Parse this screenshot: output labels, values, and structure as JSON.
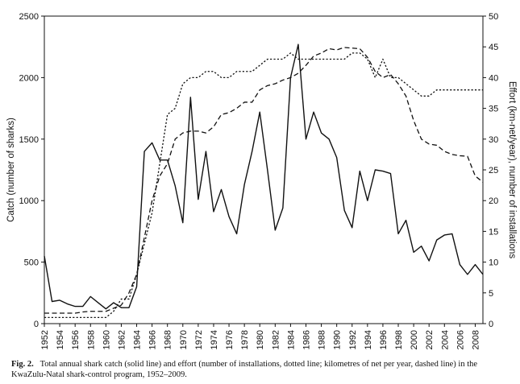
{
  "caption": {
    "label": "Fig. 2.",
    "text": "Total annual shark catch (solid line) and effort (number of installations, dotted line; kilometres of net per year, dashed line) in the KwaZulu-Natal shark-control program, 1952–2009."
  },
  "chart_data": {
    "type": "line",
    "title": "",
    "xlabel": "",
    "ylabel": "Catch (number of sharks)",
    "y2label": "Effort (km-net/year), number of installations",
    "xlim": [
      1952,
      2009
    ],
    "ylim": [
      0,
      2500
    ],
    "y2lim": [
      0,
      50
    ],
    "xticks": [
      1952,
      1954,
      1956,
      1958,
      1960,
      1962,
      1964,
      1966,
      1968,
      1970,
      1972,
      1974,
      1976,
      1978,
      1980,
      1982,
      1984,
      1986,
      1988,
      1990,
      1992,
      1994,
      1996,
      1998,
      2000,
      2002,
      2004,
      2006,
      2008
    ],
    "yticks": [
      0,
      500,
      1000,
      1500,
      2000,
      2500
    ],
    "y2ticks": [
      0,
      5,
      10,
      15,
      20,
      25,
      30,
      35,
      40,
      45,
      50
    ],
    "grid": false,
    "legend": "none",
    "colors": {
      "line": "#111111",
      "frame": "#111111"
    },
    "series": [
      {
        "style": "solid",
        "axis": "left",
        "x": [
          1952,
          1953,
          1954,
          1955,
          1956,
          1957,
          1958,
          1959,
          1960,
          1961,
          1962,
          1963,
          1964,
          1965,
          1966,
          1967,
          1968,
          1969,
          1970,
          1971,
          1972,
          1973,
          1974,
          1975,
          1976,
          1977,
          1978,
          1979,
          1980,
          1981,
          1982,
          1983,
          1984,
          1985,
          1986,
          1987,
          1988,
          1989,
          1990,
          1991,
          1992,
          1993,
          1994,
          1995,
          1996,
          1997,
          1998,
          1999,
          2000,
          2001,
          2002,
          2003,
          2004,
          2005,
          2006,
          2007,
          2008,
          2009
        ],
        "values": [
          550,
          180,
          190,
          160,
          140,
          140,
          220,
          170,
          120,
          170,
          130,
          130,
          300,
          1400,
          1470,
          1330,
          1330,
          1120,
          820,
          1840,
          1010,
          1400,
          910,
          1090,
          870,
          730,
          1130,
          1400,
          1720,
          1250,
          760,
          940,
          2000,
          2270,
          1500,
          1720,
          1550,
          1500,
          1350,
          920,
          780,
          1240,
          1000,
          1250,
          1240,
          1220,
          730,
          840,
          580,
          630,
          510,
          680,
          720,
          730,
          480,
          400,
          480,
          400
        ]
      },
      {
        "style": "dotted",
        "axis": "right",
        "x": [
          1952,
          1953,
          1954,
          1955,
          1956,
          1957,
          1958,
          1959,
          1960,
          1961,
          1962,
          1963,
          1964,
          1965,
          1966,
          1967,
          1968,
          1969,
          1970,
          1971,
          1972,
          1973,
          1974,
          1975,
          1976,
          1977,
          1978,
          1979,
          1980,
          1981,
          1982,
          1983,
          1984,
          1985,
          1986,
          1987,
          1988,
          1989,
          1990,
          1991,
          1992,
          1993,
          1994,
          1995,
          1996,
          1997,
          1998,
          1999,
          2000,
          2001,
          2002,
          2003,
          2004,
          2005,
          2006,
          2007,
          2008,
          2009
        ],
        "values": [
          1,
          1,
          1,
          1,
          1,
          1,
          1,
          1,
          1,
          2,
          4,
          4,
          8,
          13,
          18,
          26,
          34,
          35,
          39,
          40,
          40,
          41,
          41,
          40,
          40,
          41,
          41,
          41,
          42,
          43,
          43,
          43,
          44,
          43,
          43,
          43,
          43,
          43,
          43,
          43,
          44,
          44,
          43,
          40,
          43,
          40,
          40,
          39,
          38,
          37,
          37,
          38,
          38,
          38,
          38,
          38,
          38,
          38
        ]
      },
      {
        "style": "dashed",
        "axis": "right",
        "x": [
          1952,
          1953,
          1954,
          1955,
          1956,
          1957,
          1958,
          1959,
          1960,
          1961,
          1962,
          1963,
          1964,
          1965,
          1966,
          1967,
          1968,
          1969,
          1970,
          1971,
          1972,
          1973,
          1974,
          1975,
          1976,
          1977,
          1978,
          1979,
          1980,
          1981,
          1982,
          1983,
          1984,
          1985,
          1986,
          1987,
          1988,
          1989,
          1990,
          1991,
          1992,
          1993,
          1994,
          1995,
          1996,
          1997,
          1998,
          1999,
          2000,
          2001,
          2002,
          2003,
          2004,
          2005,
          2006,
          2007,
          2008,
          2009
        ],
        "values": [
          1.7,
          1.7,
          1.7,
          1.7,
          1.7,
          1.9,
          2,
          2,
          2,
          2.5,
          3,
          5,
          8,
          14,
          20,
          24,
          26,
          30,
          31,
          31.3,
          31.3,
          31,
          32,
          34,
          34.3,
          35,
          36,
          36,
          38,
          38.7,
          39,
          39.6,
          40,
          40.7,
          42,
          43.5,
          44,
          44.7,
          44.5,
          44.9,
          44.8,
          44.7,
          43.3,
          41,
          40,
          40.5,
          39,
          37,
          33,
          30,
          29.2,
          29,
          28,
          27.5,
          27.3,
          27.2,
          24,
          23
        ]
      }
    ]
  }
}
